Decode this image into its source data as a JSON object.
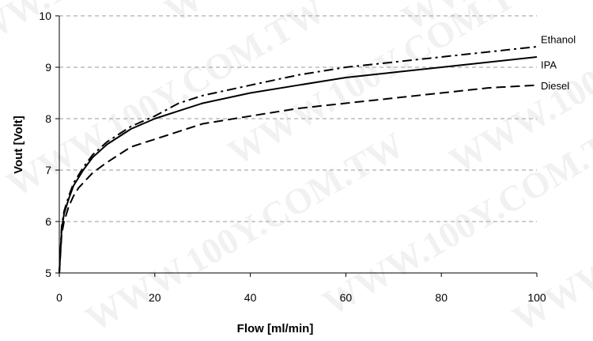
{
  "chart_data": {
    "type": "line",
    "title": "",
    "xlabel": "Flow [ml/min]",
    "ylabel": "Vout [Volt]",
    "xlim": [
      0,
      100
    ],
    "ylim": [
      5,
      10
    ],
    "x_ticks": [
      0,
      20,
      40,
      60,
      80,
      100
    ],
    "y_ticks": [
      5,
      6,
      7,
      8,
      9,
      10
    ],
    "grid": "horizontal dashed",
    "watermark": "WWW.100Y.COM.TW",
    "series": [
      {
        "name": "Ethanol",
        "line_style": "dash-dot",
        "color": "#000000",
        "points": [
          [
            0,
            5.0
          ],
          [
            0.5,
            5.9
          ],
          [
            1,
            6.2
          ],
          [
            2,
            6.5
          ],
          [
            3,
            6.75
          ],
          [
            4,
            6.9
          ],
          [
            5,
            7.05
          ],
          [
            7,
            7.3
          ],
          [
            10,
            7.55
          ],
          [
            15,
            7.85
          ],
          [
            20,
            8.05
          ],
          [
            25,
            8.3
          ],
          [
            30,
            8.45
          ],
          [
            40,
            8.65
          ],
          [
            50,
            8.85
          ],
          [
            60,
            9.0
          ],
          [
            70,
            9.1
          ],
          [
            80,
            9.2
          ],
          [
            90,
            9.3
          ],
          [
            100,
            9.4
          ]
        ]
      },
      {
        "name": "IPA",
        "line_style": "solid",
        "color": "#000000",
        "points": [
          [
            0,
            5.0
          ],
          [
            0.5,
            5.85
          ],
          [
            1,
            6.15
          ],
          [
            2,
            6.45
          ],
          [
            3,
            6.7
          ],
          [
            4,
            6.85
          ],
          [
            5,
            7.0
          ],
          [
            7,
            7.25
          ],
          [
            10,
            7.5
          ],
          [
            15,
            7.8
          ],
          [
            20,
            8.0
          ],
          [
            25,
            8.15
          ],
          [
            30,
            8.3
          ],
          [
            40,
            8.5
          ],
          [
            50,
            8.65
          ],
          [
            60,
            8.8
          ],
          [
            70,
            8.9
          ],
          [
            80,
            9.0
          ],
          [
            90,
            9.1
          ],
          [
            100,
            9.2
          ]
        ]
      },
      {
        "name": "Diesel",
        "line_style": "dashed",
        "color": "#000000",
        "points": [
          [
            0,
            5.0
          ],
          [
            0.5,
            5.75
          ],
          [
            1,
            6.0
          ],
          [
            2,
            6.3
          ],
          [
            3,
            6.5
          ],
          [
            4,
            6.65
          ],
          [
            5,
            6.75
          ],
          [
            7,
            6.95
          ],
          [
            10,
            7.15
          ],
          [
            15,
            7.45
          ],
          [
            20,
            7.6
          ],
          [
            25,
            7.75
          ],
          [
            30,
            7.9
          ],
          [
            40,
            8.05
          ],
          [
            50,
            8.2
          ],
          [
            60,
            8.3
          ],
          [
            70,
            8.4
          ],
          [
            80,
            8.5
          ],
          [
            90,
            8.6
          ],
          [
            100,
            8.65
          ]
        ]
      }
    ]
  }
}
